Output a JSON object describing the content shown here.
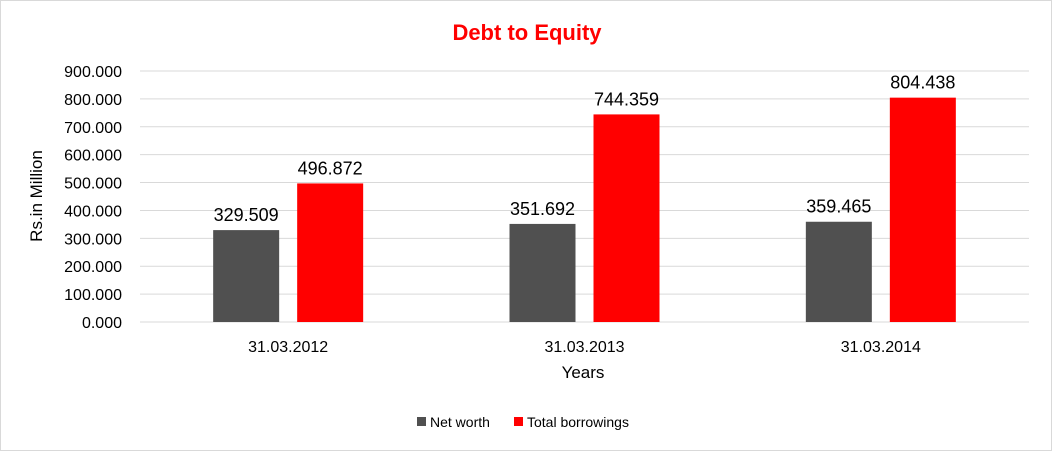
{
  "chart_data": {
    "type": "bar",
    "title": "Debt to Equity",
    "title_color": "#ff0000",
    "xlabel": "Years",
    "ylabel": "Rs.in Million",
    "categories": [
      "31.03.2012",
      "31.03.2013",
      "31.03.2014"
    ],
    "series": [
      {
        "name": "Net worth",
        "color": "#505050",
        "values": [
          329.509,
          351.692,
          359.465
        ],
        "labels": [
          "329.509",
          "351.692",
          "359.465"
        ]
      },
      {
        "name": "Total borrowings",
        "color": "#ff0000",
        "values": [
          496.872,
          744.359,
          804.438
        ],
        "labels": [
          "496.872",
          "744.359",
          "804.438"
        ]
      }
    ],
    "ylim": [
      0,
      900
    ],
    "yticks": [
      0,
      100,
      200,
      300,
      400,
      500,
      600,
      700,
      800,
      900
    ],
    "ytick_labels": [
      "0.000",
      "100.000",
      "200.000",
      "300.000",
      "400.000",
      "500.000",
      "600.000",
      "700.000",
      "800.000",
      "900.000"
    ],
    "grid": true,
    "legend_position": "bottom"
  }
}
